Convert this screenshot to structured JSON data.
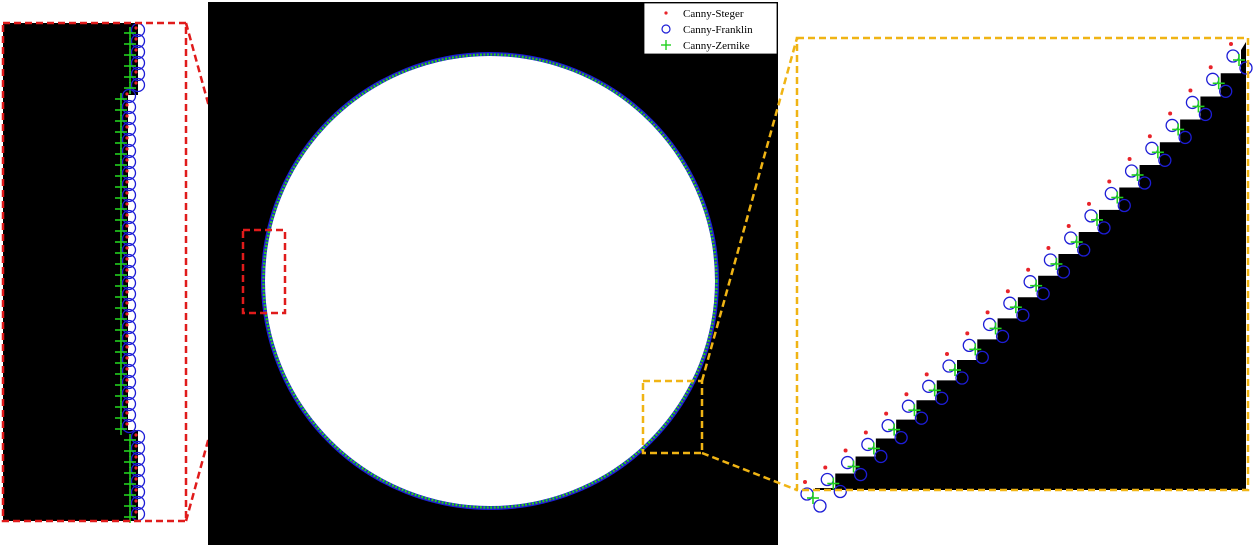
{
  "legend": {
    "items": [
      {
        "label": "Canny-Steger",
        "marker": "dot",
        "color": "#e8232a"
      },
      {
        "label": "Canny-Franklin",
        "marker": "circle",
        "color": "#1d1dd6"
      },
      {
        "label": "Canny-Zernike",
        "marker": "plus",
        "color": "#22d11f"
      }
    ]
  },
  "colors": {
    "zoom_left_frame": "#e01b1b",
    "zoom_right_frame": "#f0b414",
    "image_background": "#000000",
    "region_fill": "#ffffff"
  }
}
